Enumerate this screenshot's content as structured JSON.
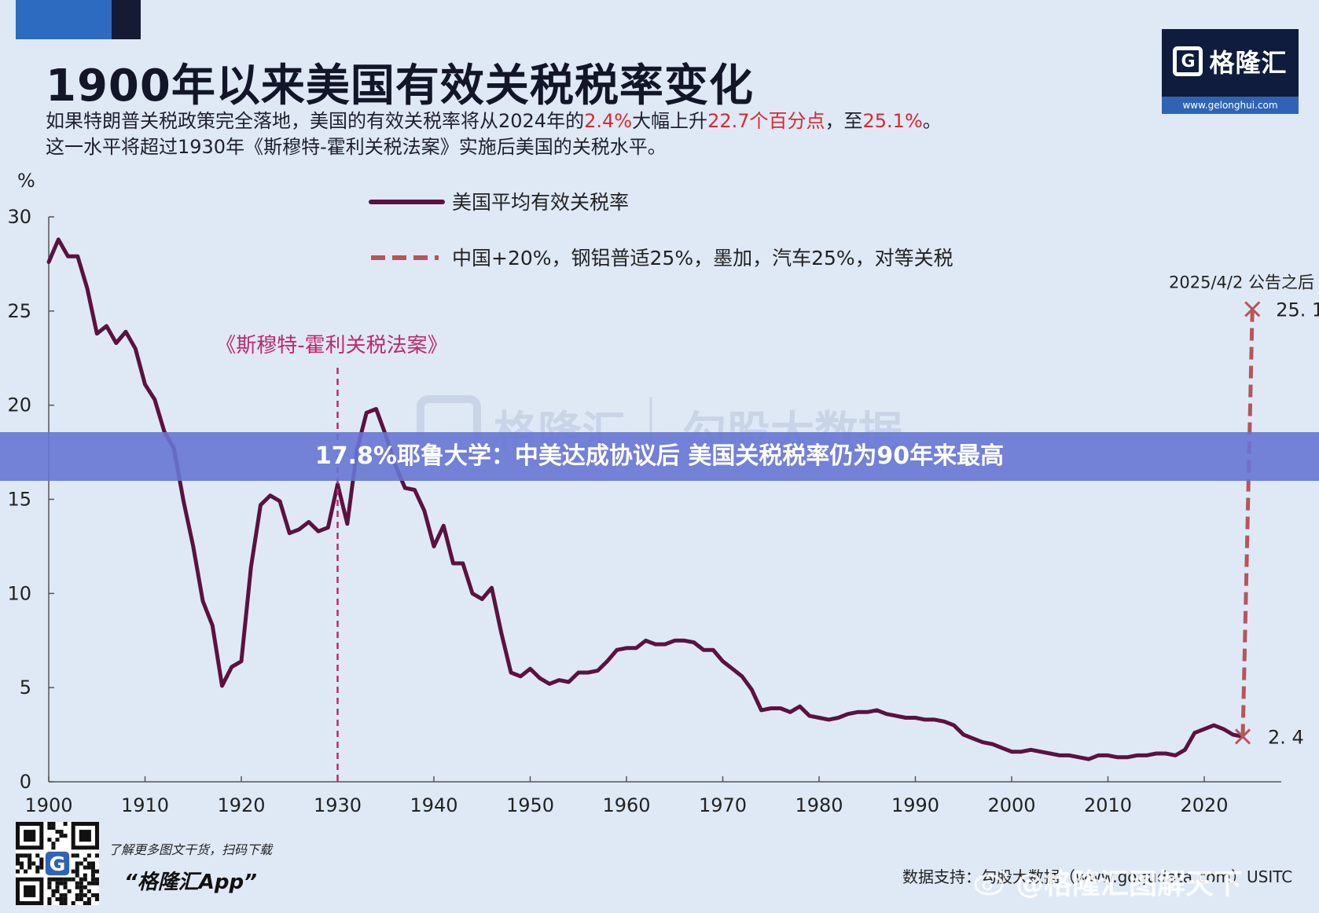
{
  "header": {
    "title": "1900年以来美国有效关税税率变化",
    "subtitle_line1_a": "如果特朗普关税政策完全落地，美国的有效关税率将从2024年的",
    "subtitle_line1_b": "2.4%",
    "subtitle_line1_c": "大幅上升",
    "subtitle_line1_d": "22.7个百分点",
    "subtitle_line1_e": "，至",
    "subtitle_line1_f": "25.1%",
    "subtitle_line1_g": "。",
    "subtitle_line2": "这一水平将超过1930年《斯穆特-霍利关税法案》实施后美国的关税水平。"
  },
  "logo": {
    "name": "格隆汇",
    "url": "www.gelonghui.com"
  },
  "banner": {
    "headline": "17.8%耶鲁大学：中美达成协议后 美国关税税率仍为90年来最高"
  },
  "chart_data": {
    "type": "line",
    "ylabel": "%",
    "xlim": [
      1900,
      2028
    ],
    "ylim": [
      0,
      30
    ],
    "x_ticks": [
      1900,
      1910,
      1920,
      1930,
      1940,
      1950,
      1960,
      1970,
      1980,
      1990,
      2000,
      2010,
      2020
    ],
    "y_ticks": [
      0,
      5,
      10,
      15,
      20,
      25,
      30
    ],
    "legend": {
      "placement": "top-center"
    },
    "series": [
      {
        "name": "美国平均有效关税率",
        "color": "#5b1240",
        "x": [
          1900,
          1901,
          1902,
          1903,
          1904,
          1905,
          1906,
          1907,
          1908,
          1909,
          1910,
          1911,
          1912,
          1913,
          1914,
          1915,
          1916,
          1917,
          1918,
          1919,
          1920,
          1921,
          1922,
          1923,
          1924,
          1925,
          1926,
          1927,
          1928,
          1929,
          1930,
          1931,
          1932,
          1933,
          1934,
          1935,
          1936,
          1937,
          1938,
          1939,
          1940,
          1941,
          1942,
          1943,
          1944,
          1945,
          1946,
          1947,
          1948,
          1949,
          1950,
          1951,
          1952,
          1953,
          1954,
          1955,
          1956,
          1957,
          1958,
          1959,
          1960,
          1961,
          1962,
          1963,
          1964,
          1965,
          1966,
          1967,
          1968,
          1969,
          1970,
          1971,
          1972,
          1973,
          1974,
          1975,
          1976,
          1977,
          1978,
          1979,
          1980,
          1981,
          1982,
          1983,
          1984,
          1985,
          1986,
          1987,
          1988,
          1989,
          1990,
          1991,
          1992,
          1993,
          1994,
          1995,
          1996,
          1997,
          1998,
          1999,
          2000,
          2001,
          2002,
          2003,
          2004,
          2005,
          2006,
          2007,
          2008,
          2009,
          2010,
          2011,
          2012,
          2013,
          2014,
          2015,
          2016,
          2017,
          2018,
          2019,
          2020,
          2021,
          2022,
          2023,
          2024
        ],
        "values": [
          27.6,
          28.8,
          27.9,
          27.9,
          26.2,
          23.8,
          24.2,
          23.3,
          23.9,
          23.0,
          21.1,
          20.3,
          18.6,
          17.7,
          14.9,
          12.5,
          9.6,
          8.3,
          5.1,
          6.1,
          6.4,
          11.4,
          14.7,
          15.2,
          14.9,
          13.2,
          13.4,
          13.8,
          13.3,
          13.5,
          15.8,
          13.7,
          17.6,
          19.6,
          19.8,
          18.4,
          16.8,
          15.6,
          15.5,
          14.4,
          12.5,
          13.6,
          11.6,
          11.6,
          10.0,
          9.7,
          10.3,
          7.9,
          5.8,
          5.6,
          6.0,
          5.5,
          5.2,
          5.4,
          5.3,
          5.8,
          5.8,
          5.9,
          6.4,
          7.0,
          7.1,
          7.1,
          7.5,
          7.3,
          7.3,
          7.5,
          7.5,
          7.4,
          7.0,
          7.0,
          6.4,
          6.0,
          5.6,
          4.9,
          3.8,
          3.9,
          3.9,
          3.7,
          4.0,
          3.5,
          3.4,
          3.3,
          3.4,
          3.6,
          3.7,
          3.7,
          3.8,
          3.6,
          3.5,
          3.4,
          3.4,
          3.3,
          3.3,
          3.2,
          3.0,
          2.5,
          2.3,
          2.1,
          2.0,
          1.8,
          1.6,
          1.6,
          1.7,
          1.6,
          1.5,
          1.4,
          1.4,
          1.3,
          1.2,
          1.4,
          1.4,
          1.3,
          1.3,
          1.4,
          1.4,
          1.5,
          1.5,
          1.4,
          1.7,
          2.6,
          2.8,
          3.0,
          2.8,
          2.5,
          2.4
        ]
      },
      {
        "name": "中国+20%，钢铝普适25%，墨加，汽车25%，对等关税",
        "color": "#b5565a",
        "style": "dashed",
        "x": [
          2024,
          2025
        ],
        "values": [
          2.4,
          25.1
        ]
      }
    ],
    "annotations": [
      {
        "text": "《斯穆特-霍利关税法案》",
        "x": 1930,
        "color": "#c0276f"
      },
      {
        "text": "2025/4/2 公告之后",
        "x": 2025,
        "y": 25.1
      },
      {
        "text": "25. 1",
        "x": 2025,
        "y": 25.1
      },
      {
        "text": "2. 4",
        "x": 2024,
        "y": 2.4
      }
    ],
    "watermark": {
      "brand": "格隆汇",
      "product": "勾股大数据"
    }
  },
  "footer": {
    "qr_caption": "了解更多图文干货，扫码下载",
    "app_name": "“格隆汇App”",
    "source_label": "数据支持：勾股大数据（www.gogudata.com）USITC",
    "weibo_handle": "@格隆汇图解天下"
  }
}
